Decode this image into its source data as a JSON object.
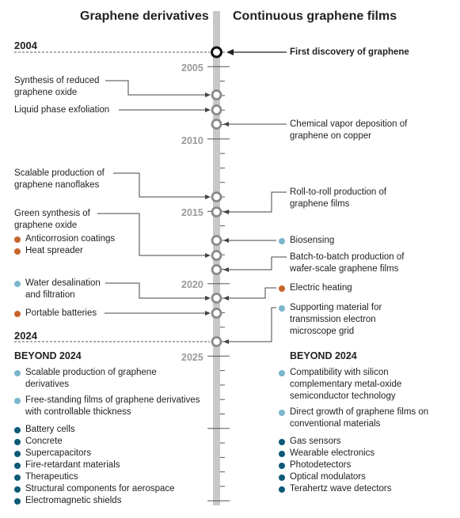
{
  "headers": {
    "left": "Graphene derivatives",
    "right": "Continuous graphene films"
  },
  "years": {
    "start": "2004",
    "end": "2024",
    "ticks": [
      "2005",
      "2010",
      "2015",
      "2020",
      "2025"
    ]
  },
  "colors": {
    "light_blue": "#7ab7cd",
    "dark_teal": "#0c5a78",
    "orange": "#c8642a",
    "axis": "#c8c8c8"
  },
  "left_events": {
    "reduced_oxide": "Synthesis of reduced graphene oxide",
    "liquid_phase": "Liquid phase exfoliation",
    "nanoflakes": "Scalable production of graphene nanoflakes",
    "green_synthesis": "Green synthesis of graphene oxide",
    "anticorrosion": "Anticorrosion coatings",
    "heat_spreader": "Heat spreader",
    "water_desal": "Water desalination and filtration",
    "portable_batteries": "Portable batteries"
  },
  "right_events": {
    "first_discovery": "First discovery of graphene",
    "cvd": "Chemical vapor deposition of graphene on copper",
    "roll_to_roll": "Roll-to-roll production of graphene films",
    "biosensing": "Biosensing",
    "batch": "Batch-to-batch production of wafer-scale graphene films",
    "electric_heating": "Electric heating",
    "tem_support": "Supporting material for transmission electron microscope grid"
  },
  "beyond": {
    "title": "BEYOND 2024",
    "left_light": [
      "Scalable production of graphene derivatives",
      "Free-standing films of graphene derivatives with controllable thickness"
    ],
    "left_dark": [
      "Battery cells",
      "Concrete",
      "Supercapacitors",
      "Fire-retardant materials",
      "Therapeutics",
      "Structural components for aerospace",
      "Electromagnetic shields"
    ],
    "right_light": [
      "Compatibility with silicon complementary metal-oxide semiconductor technology",
      "Direct growth of graphene films on conventional materials"
    ],
    "right_dark": [
      "Gas sensors",
      "Wearable electronics",
      "Photodetectors",
      "Optical modulators",
      "Terahertz wave detectors"
    ]
  }
}
